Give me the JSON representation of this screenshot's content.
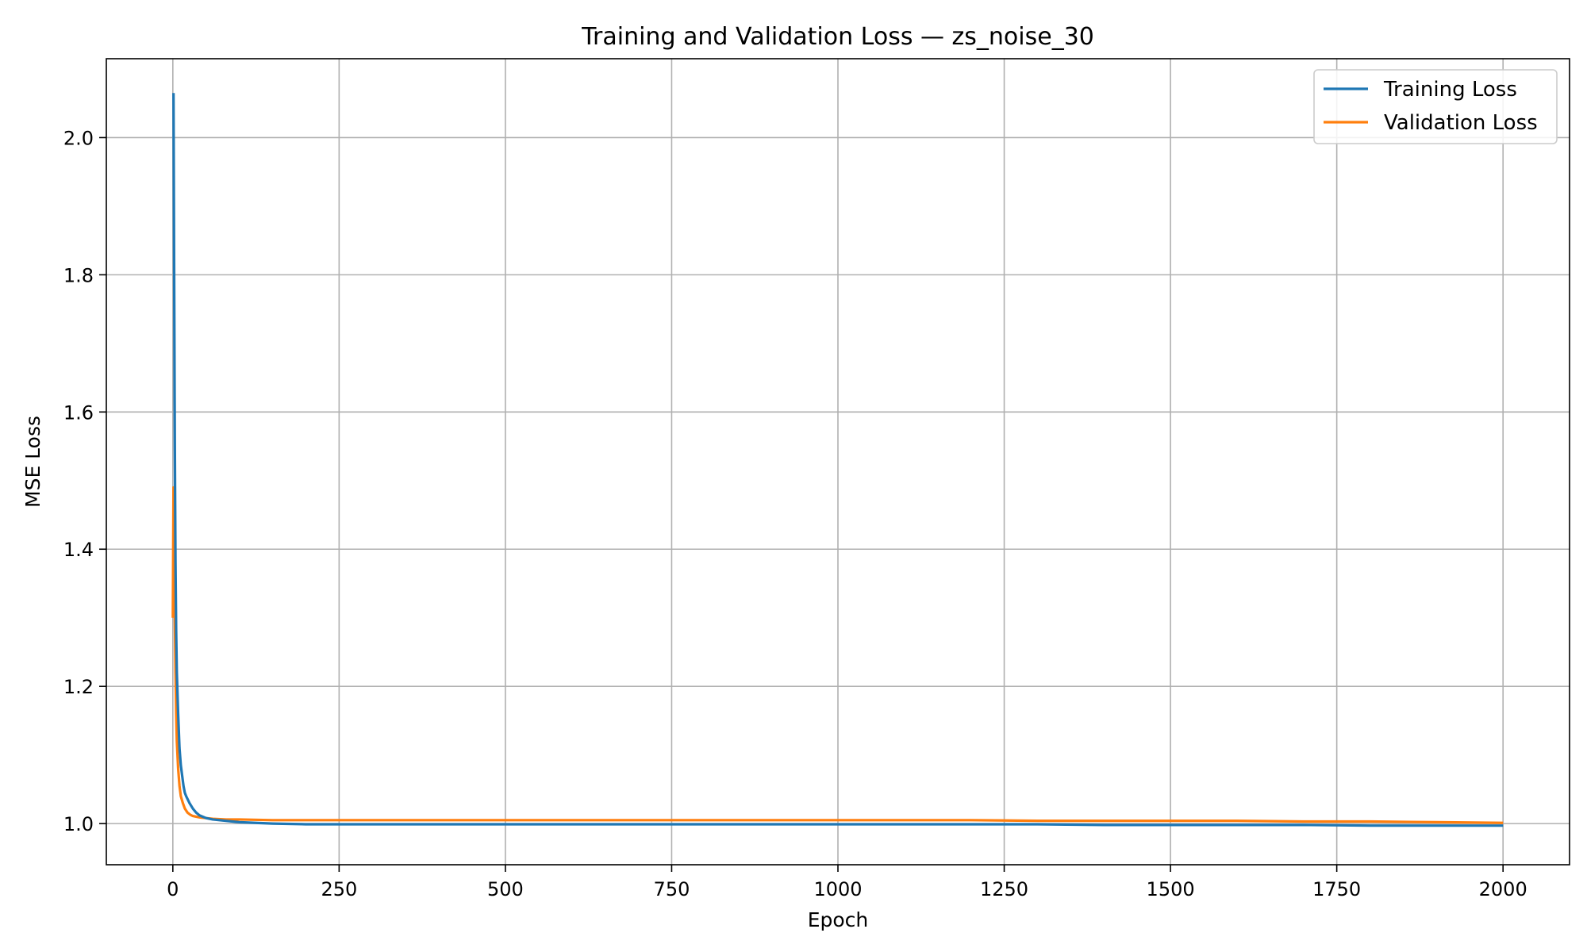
{
  "chart_data": {
    "type": "line",
    "title": "Training and Validation Loss — zs_noise_30",
    "xlabel": "Epoch",
    "ylabel": "MSE Loss",
    "xlim": [
      -100,
      2100
    ],
    "ylim": [
      0.94,
      2.115
    ],
    "xticks": [
      0,
      250,
      500,
      750,
      1000,
      1250,
      1500,
      1750,
      2000
    ],
    "yticks": [
      1.0,
      1.2,
      1.4,
      1.6,
      1.8,
      2.0
    ],
    "ytick_format": "1dp",
    "grid": true,
    "legend": "top-right",
    "series": [
      {
        "name": "Training Loss",
        "color": "#1f77b4",
        "x": [
          1,
          2,
          3,
          4,
          5,
          6,
          8,
          10,
          12,
          14,
          16,
          18,
          20,
          25,
          30,
          35,
          40,
          45,
          50,
          60,
          70,
          80,
          100,
          150,
          200,
          250,
          300,
          400,
          500,
          600,
          700,
          800,
          900,
          1000,
          1100,
          1200,
          1300,
          1400,
          1500,
          1600,
          1700,
          1800,
          1900,
          2000
        ],
        "y": [
          2.065,
          1.8,
          1.55,
          1.38,
          1.28,
          1.22,
          1.16,
          1.11,
          1.085,
          1.07,
          1.055,
          1.045,
          1.04,
          1.03,
          1.022,
          1.016,
          1.012,
          1.01,
          1.008,
          1.006,
          1.005,
          1.004,
          1.002,
          1.0,
          0.999,
          0.999,
          0.999,
          0.999,
          0.999,
          0.999,
          0.999,
          0.999,
          0.999,
          0.999,
          0.999,
          0.999,
          0.999,
          0.998,
          0.998,
          0.998,
          0.998,
          0.997,
          0.997,
          0.997
        ]
      },
      {
        "name": "Validation Loss",
        "color": "#ff7f0e",
        "x": [
          0,
          1,
          2,
          3,
          4,
          5,
          6,
          8,
          10,
          12,
          15,
          18,
          22,
          26,
          30,
          40,
          50,
          60,
          80,
          100,
          150,
          200,
          300,
          400,
          500,
          600,
          700,
          800,
          900,
          1000,
          1100,
          1200,
          1300,
          1400,
          1500,
          1600,
          1700,
          1800,
          1900,
          2000
        ],
        "y": [
          1.3,
          1.49,
          1.4,
          1.3,
          1.22,
          1.16,
          1.12,
          1.08,
          1.055,
          1.04,
          1.03,
          1.022,
          1.016,
          1.013,
          1.011,
          1.009,
          1.008,
          1.007,
          1.006,
          1.006,
          1.005,
          1.005,
          1.005,
          1.005,
          1.005,
          1.005,
          1.005,
          1.005,
          1.005,
          1.005,
          1.005,
          1.005,
          1.004,
          1.004,
          1.004,
          1.004,
          1.003,
          1.003,
          1.002,
          1.001
        ]
      }
    ]
  }
}
